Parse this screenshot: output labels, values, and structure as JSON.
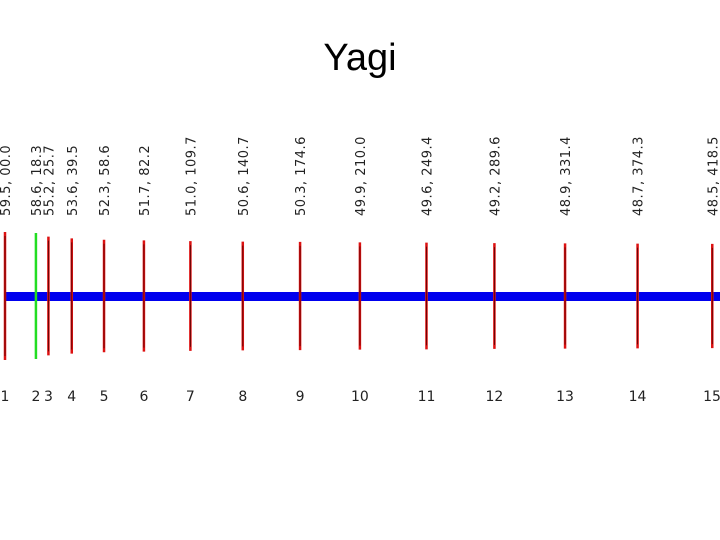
{
  "title": "Yagi",
  "elements": [
    {
      "label": "59.5, 00.0",
      "number": "1"
    },
    {
      "label": "58.6, 18.3",
      "number": "2"
    },
    {
      "label": "55.2, 25.7",
      "number": "3"
    },
    {
      "label": "53.6, 39.5",
      "number": "4"
    },
    {
      "label": "52.3, 58.6",
      "number": "5"
    },
    {
      "label": "51.7, 82.2",
      "number": "6"
    },
    {
      "label": "51.0, 109.7",
      "number": "7"
    },
    {
      "label": "50.6, 140.7",
      "number": "8"
    },
    {
      "label": "50.3, 174.6",
      "number": "9"
    },
    {
      "label": "49.9, 210.0",
      "number": "10"
    },
    {
      "label": "49.6, 249.4",
      "number": "11"
    },
    {
      "label": "49.2, 289.6",
      "number": "12"
    },
    {
      "label": "48.9, 331.4",
      "number": "13"
    },
    {
      "label": "48.7, 374.3",
      "number": "14"
    },
    {
      "label": "48.5, 418.5",
      "number": "15"
    }
  ]
}
